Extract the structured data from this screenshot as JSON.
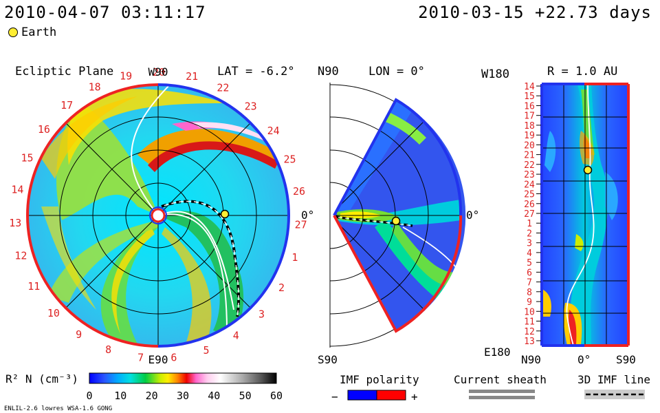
{
  "header": {
    "datetime": "2010-04-07 03:11:17",
    "reference": "2010-03-15 +22.73 days",
    "legend_earth": "Earth"
  },
  "colors": {
    "earth": "#ffee33",
    "polarity_negative": "#0000ff",
    "polarity_positive": "#ff0000",
    "boundary_red": "#ee2222",
    "boundary_blue": "#2233ee",
    "tick_label": "#dd2222",
    "sheath_gray": "#888888"
  },
  "panels": {
    "ecliptic": {
      "title": "Ecliptic Plane",
      "top_label": "W90",
      "bottom_label": "E90",
      "right_label": "0°",
      "lat_label": "LAT = -6.2°",
      "carrington_ticks": [
        "19",
        "20",
        "21",
        "22",
        "23",
        "24",
        "25",
        "26",
        "27",
        "1",
        "2",
        "3",
        "4",
        "5",
        "6",
        "7",
        "8",
        "9",
        "10",
        "11",
        "12",
        "13",
        "14",
        "15",
        "16",
        "17",
        "18"
      ]
    },
    "meridional": {
      "top_label": "N90",
      "bottom_label": "S90",
      "right_label": "0°",
      "lon_label": "LON = 0°"
    },
    "radial": {
      "title": "R = 1.0 AU",
      "top_left": "W180",
      "bottom_left": "E180",
      "x_labels": [
        "N90",
        "0°",
        "S90"
      ],
      "y_ticks": [
        "14",
        "15",
        "16",
        "17",
        "18",
        "19",
        "20",
        "21",
        "22",
        "23",
        "24",
        "25",
        "26",
        "27",
        "1",
        "2",
        "3",
        "4",
        "5",
        "6",
        "7",
        "8",
        "9",
        "10",
        "11",
        "12",
        "13"
      ]
    }
  },
  "colorbar": {
    "label": "R² N (cm⁻³)",
    "ticks": [
      "0",
      "10",
      "20",
      "30",
      "40",
      "50",
      "60"
    ],
    "range": [
      0,
      60
    ]
  },
  "legends": {
    "imf_polarity": "IMF polarity",
    "minus": "−",
    "plus": "+",
    "current_sheath": "Current sheath",
    "imf_line_3d": "3D IMF line"
  },
  "footer": {
    "model": "ENLIL-2.6 lowres WSA-1.6 GONG"
  },
  "chart_data": {
    "type": "heatmap",
    "title": "",
    "quantity": "R² N (cm⁻³)",
    "scale": [
      0,
      60
    ],
    "earth_location": {
      "carrington_longitude": 27,
      "radius_au": 1.0
    }
  }
}
